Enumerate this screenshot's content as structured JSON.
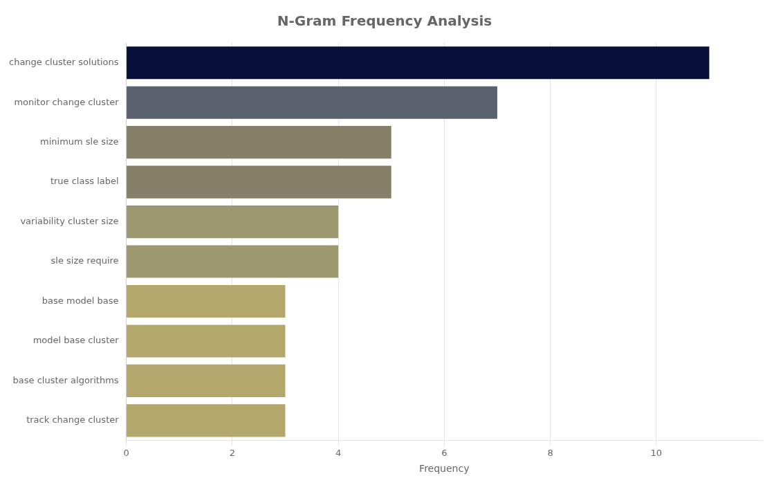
{
  "chart_data": {
    "type": "bar",
    "orientation": "horizontal",
    "title": "N-Gram Frequency Analysis",
    "categories": [
      "track change cluster",
      "base cluster algorithms",
      "model base cluster",
      "base model base",
      "sle size require",
      "variability cluster size",
      "true class label",
      "minimum sle size",
      "monitor change cluster",
      "change cluster solutions"
    ],
    "values": [
      3,
      3,
      3,
      3,
      4,
      4,
      5,
      5,
      7,
      11
    ],
    "colors": [
      "#b3a76b",
      "#b3a76b",
      "#b3a76b",
      "#b3a76b",
      "#9e9870",
      "#9e9870",
      "#878068",
      "#878068",
      "#5c6170",
      "#071038"
    ],
    "xlabel": "Frequency",
    "xlim": [
      0,
      12
    ],
    "xticks": [
      0,
      2,
      4,
      6,
      8,
      10
    ],
    "grid": true
  }
}
